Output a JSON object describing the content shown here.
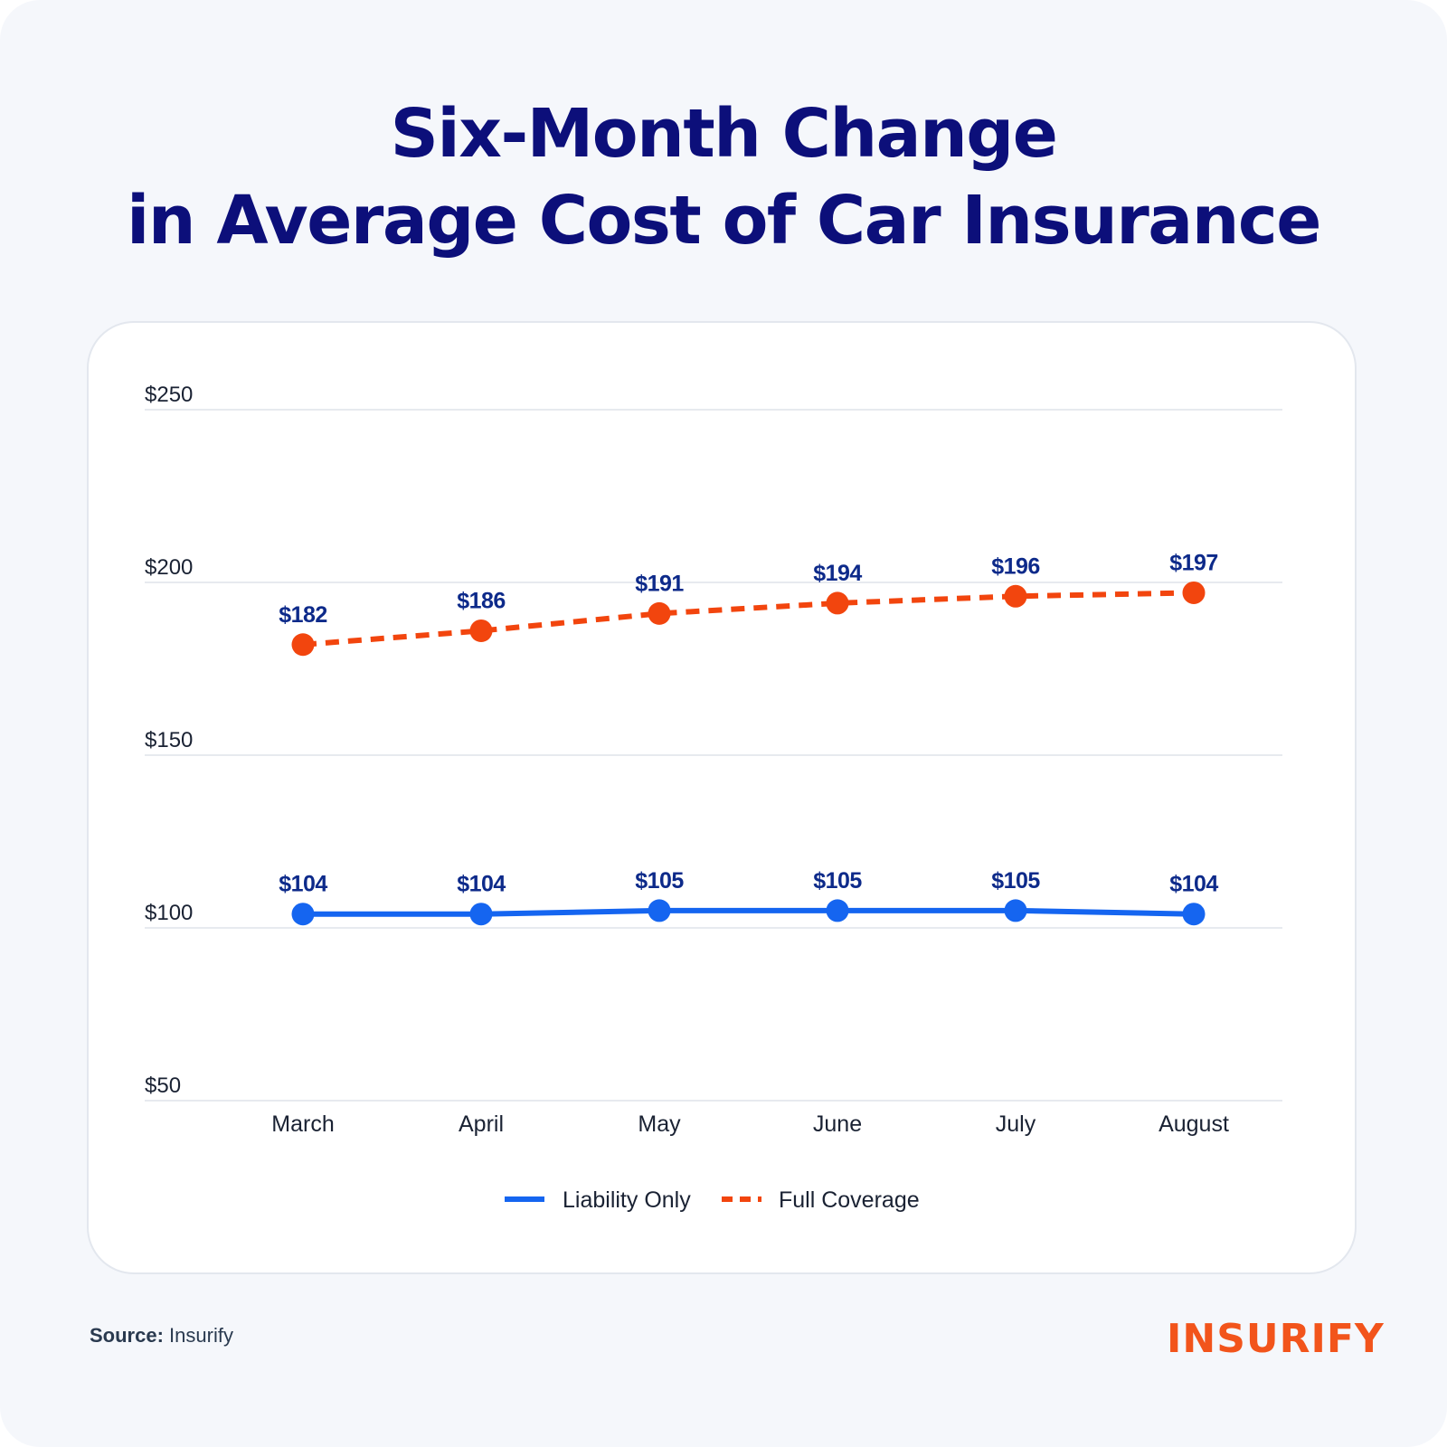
{
  "title": {
    "line1": "Six-Month Change",
    "line2": "in Average Cost of Car Insurance"
  },
  "chart_data": {
    "type": "line",
    "title": "Six-Month Change in Average Cost of Car Insurance",
    "xlabel": "",
    "ylabel": "",
    "categories": [
      "March",
      "April",
      "May",
      "June",
      "July",
      "August"
    ],
    "ylim": [
      50,
      250
    ],
    "yticks": [
      50,
      100,
      150,
      200,
      250
    ],
    "ytick_labels": [
      "$50",
      "$100",
      "$150",
      "$200",
      "$250"
    ],
    "grid": true,
    "legend_position": "bottom-center",
    "series": [
      {
        "name": "Liability Only",
        "style": "solid",
        "color": "#1565f0",
        "values": [
          104,
          104,
          105,
          105,
          105,
          104
        ],
        "labels": [
          "$104",
          "$104",
          "$105",
          "$105",
          "$105",
          "$104"
        ]
      },
      {
        "name": "Full Coverage",
        "style": "dashed",
        "color": "#f2450e",
        "values": [
          182,
          186,
          191,
          194,
          196,
          197
        ],
        "labels": [
          "$182",
          "$186",
          "$191",
          "$194",
          "$196",
          "$197"
        ]
      }
    ]
  },
  "footer": {
    "source_label": "Source:",
    "source_value": "Insurify",
    "logo_text": "INSURIFY"
  },
  "colors": {
    "title": "#0c0f7a",
    "data_label": "#0d2a8a",
    "axis_text": "#1a2233",
    "grid": "#dfe3ea",
    "brand": "#f2541b"
  }
}
